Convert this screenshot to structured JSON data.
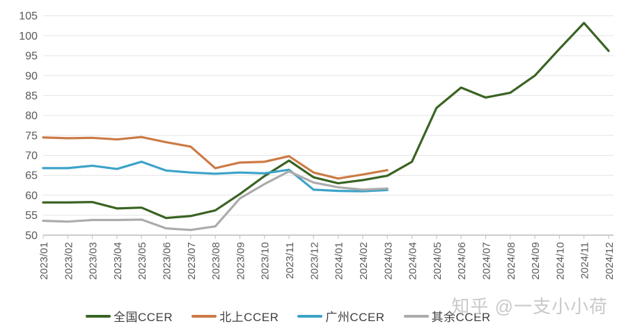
{
  "watermark": {
    "text": "知乎 @一支小小荷"
  },
  "chart_data": {
    "type": "line",
    "title": "",
    "xlabel": "",
    "ylabel": "",
    "ylim": [
      50,
      105
    ],
    "y_tick_step": 5,
    "grid": true,
    "legend_position": "bottom",
    "categories": [
      "2023/01",
      "2023/02",
      "2023/03",
      "2023/04",
      "2023/05",
      "2023/06",
      "2023/07",
      "2023/08",
      "2023/09",
      "2023/10",
      "2023/11",
      "2023/12",
      "2024/01",
      "2024/02",
      "2024/03",
      "2024/04",
      "2024/05",
      "2024/06",
      "2024/07",
      "2024/08",
      "2024/09",
      "2024/10",
      "2024/11",
      "2024/12"
    ],
    "series": [
      {
        "name": "全国CCER",
        "color": "#3A6323",
        "values": [
          58.2,
          58.2,
          58.3,
          56.7,
          56.9,
          54.3,
          54.8,
          56.2,
          60.3,
          64.8,
          68.7,
          64.5,
          63.0,
          63.8,
          64.9,
          68.4,
          81.9,
          87.0,
          84.5,
          85.7,
          90.0,
          96.7,
          103.2,
          96.2
        ]
      },
      {
        "name": "北上CCER",
        "color": "#CC7A45",
        "values": [
          74.5,
          74.3,
          74.4,
          74.0,
          74.6,
          73.3,
          72.2,
          66.8,
          68.2,
          68.4,
          69.8,
          65.7,
          64.2,
          65.2,
          66.3
        ]
      },
      {
        "name": "广州CCER",
        "color": "#3BA3C8",
        "values": [
          66.8,
          66.8,
          67.4,
          66.6,
          68.4,
          66.2,
          65.7,
          65.4,
          65.7,
          65.5,
          66.4,
          61.4,
          61.1,
          61.0,
          61.3
        ]
      },
      {
        "name": "其余CCER",
        "color": "#ABABAB",
        "values": [
          53.6,
          53.4,
          53.8,
          53.8,
          53.9,
          51.7,
          51.3,
          52.2,
          59.2,
          62.8,
          66.0,
          63.2,
          62.0,
          61.4,
          61.7
        ]
      }
    ],
    "style": {
      "axis_label_color": "#595959",
      "grid_color": "#e4e4e4",
      "axis_line_color": "#bfbfbf",
      "y_font_size": 16,
      "x_font_size": 15,
      "line_width": 3.2
    }
  }
}
